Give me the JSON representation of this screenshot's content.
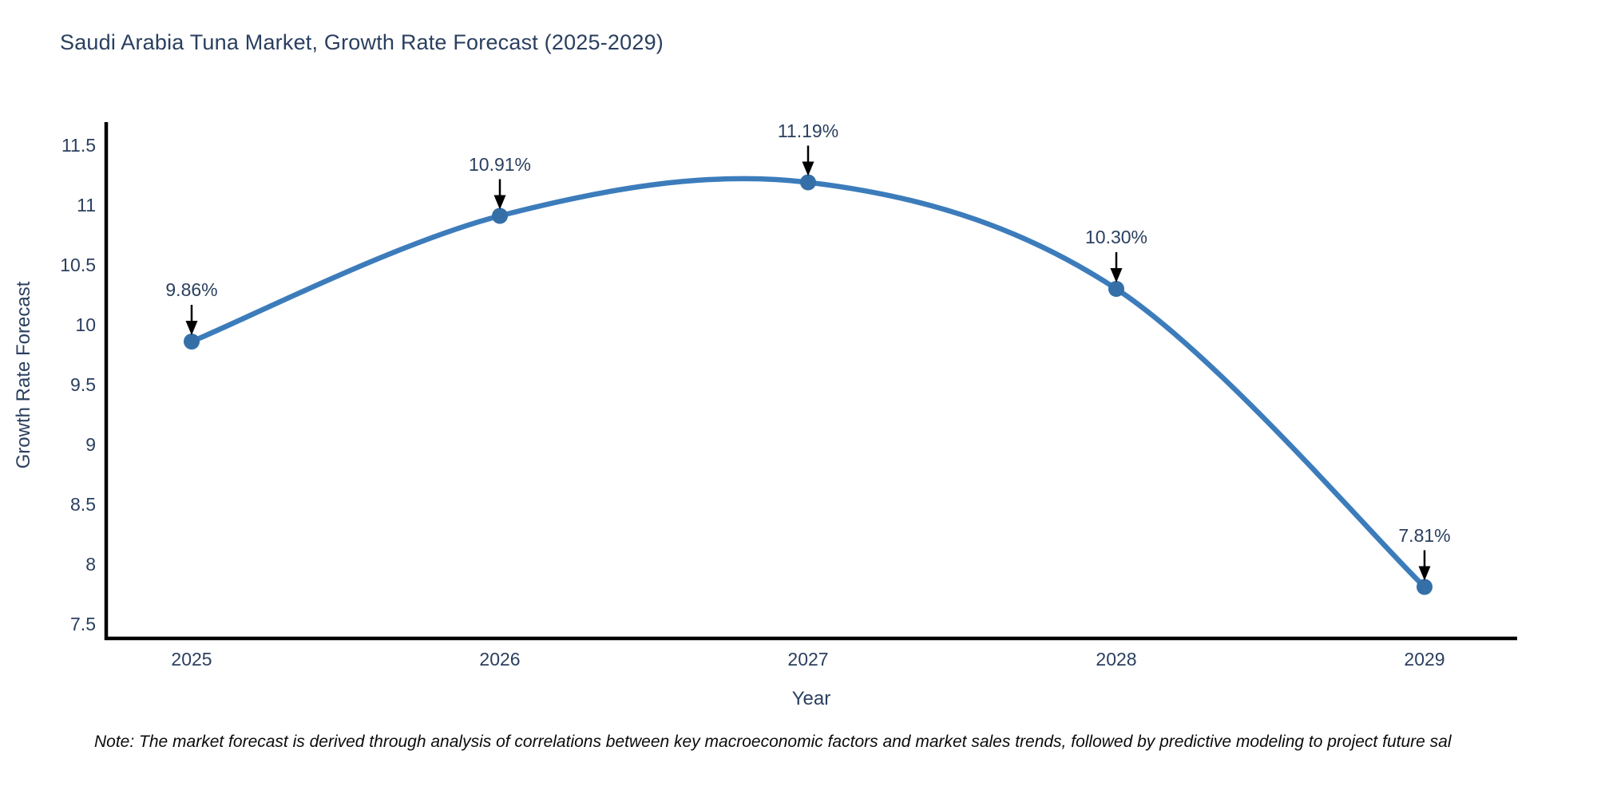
{
  "title": "Saudi Arabia Tuna Market, Growth Rate Forecast (2025-2029)",
  "note": "Note: The market forecast is derived through analysis of correlations between key macroeconomic factors and market sales trends, followed by predictive modeling to project future sal",
  "chart_data": {
    "type": "line",
    "title": "Saudi Arabia Tuna Market, Growth Rate Forecast (2025-2029)",
    "xlabel": "Year",
    "ylabel": "Growth Rate Forecast",
    "x": [
      "2025",
      "2026",
      "2027",
      "2028",
      "2029"
    ],
    "values": [
      9.86,
      10.91,
      11.19,
      10.3,
      7.81
    ],
    "point_labels": [
      "9.86%",
      "10.91%",
      "11.19%",
      "10.30%",
      "7.81%"
    ],
    "yticks": [
      7.5,
      8,
      8.5,
      9,
      9.5,
      10,
      10.5,
      11,
      11.5
    ],
    "ylim": [
      7.3,
      11.7
    ],
    "grid": false,
    "legend": "none",
    "line_shape": "spline",
    "annotation_arrows": "down-arrow-to-point",
    "colors": {
      "line": "#3c7cbb",
      "marker": "#356fa8",
      "axis_line": "#000000",
      "text": "#2a3f5f",
      "annotation_arrow": "#000000",
      "note_text": "#0b0b0b",
      "background": "#ffffff"
    }
  }
}
